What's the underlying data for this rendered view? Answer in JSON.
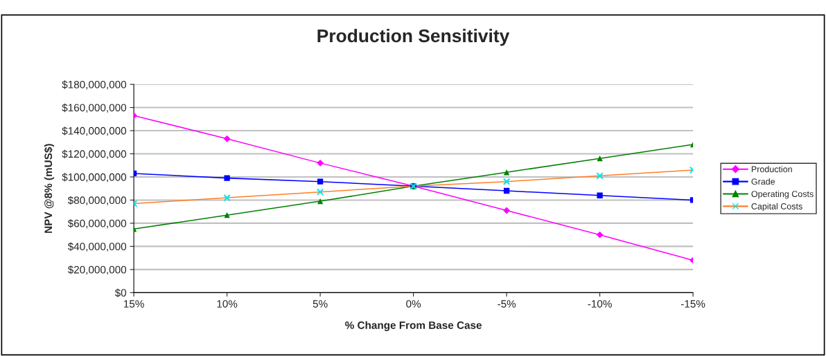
{
  "chart_data": {
    "type": "line",
    "title": "Production Sensitivity",
    "xlabel": "% Change From Base Case",
    "ylabel": "NPV @8% (mUS$)",
    "categories": [
      "15%",
      "10%",
      "5%",
      "0%",
      "-5%",
      "-10%",
      "-15%"
    ],
    "series": [
      {
        "name": "Production",
        "color": "#ff00ff",
        "marker": "diamond",
        "values": [
          153000000,
          133000000,
          112000000,
          92000000,
          71000000,
          50000000,
          28000000
        ]
      },
      {
        "name": "Grade",
        "color": "#0000ff",
        "marker": "square",
        "values": [
          103000000,
          99000000,
          96000000,
          92000000,
          88000000,
          84000000,
          80000000
        ]
      },
      {
        "name": "Operating Costs",
        "color": "#008000",
        "marker": "triangle",
        "values": [
          55000000,
          67000000,
          79000000,
          92000000,
          104000000,
          116000000,
          128000000
        ]
      },
      {
        "name": "Capital Costs",
        "color": "#ff7f27",
        "marker": "cross",
        "colors": [
          "#00e5ee",
          "#00e5ee",
          "#00e5ee",
          "#00e5ee",
          "#00e5ee",
          "#00e5ee",
          "#00e5ee"
        ],
        "values": [
          77000000,
          82000000,
          87000000,
          92000000,
          96000000,
          101000000,
          106000000
        ]
      }
    ],
    "ylim": [
      0,
      180000000
    ],
    "yticks": [
      {
        "value": 0,
        "label": "$0"
      },
      {
        "value": 20000000,
        "label": "$20,000,000"
      },
      {
        "value": 40000000,
        "label": "$40,000,000"
      },
      {
        "value": 60000000,
        "label": "$60,000,000"
      },
      {
        "value": 80000000,
        "label": "$80,000,000"
      },
      {
        "value": 100000000,
        "label": "$100,000,000"
      },
      {
        "value": 120000000,
        "label": "$120,000,000"
      },
      {
        "value": 140000000,
        "label": "$140,000,000"
      },
      {
        "value": 160000000,
        "label": "$160,000,000"
      },
      {
        "value": 180000000,
        "label": "$180,000,000"
      }
    ],
    "grid": "y",
    "legend": "right",
    "line_style": "solid"
  }
}
